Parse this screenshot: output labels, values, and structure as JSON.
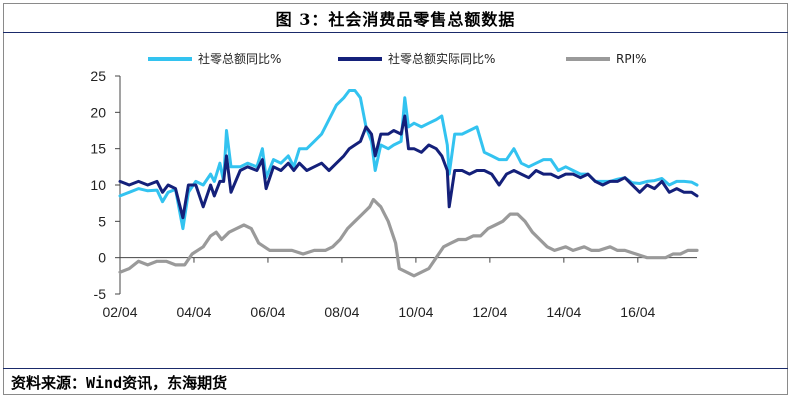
{
  "title": "图 3：社会消费品零售总额数据",
  "source": "资料来源：Wind资讯，东海期货",
  "colors": {
    "total_nominal": "#33c3f0",
    "total_real": "#14207a",
    "rpi": "#9a9a9a"
  },
  "chart_data": {
    "type": "line",
    "title": "图 3：社会消费品零售总额数据",
    "xlabel": "",
    "ylabel": "",
    "x_ticks": [
      "02/04",
      "04/04",
      "06/04",
      "08/04",
      "10/04",
      "12/04",
      "14/04",
      "16/04"
    ],
    "x_range": [
      2002.25,
      2017.85
    ],
    "y_ticks": [
      "25",
      "20",
      "15",
      "10",
      "5",
      "0",
      "-5"
    ],
    "ylim": [
      -5,
      25
    ],
    "grid": false,
    "legend_position": "top",
    "series": [
      {
        "name": "社零总额同比%",
        "color": "#33c3f0",
        "points": [
          [
            2002.25,
            8.5
          ],
          [
            2002.5,
            9.0
          ],
          [
            2002.75,
            9.5
          ],
          [
            2003.0,
            9.2
          ],
          [
            2003.25,
            9.3
          ],
          [
            2003.4,
            7.7
          ],
          [
            2003.55,
            9.0
          ],
          [
            2003.75,
            9.4
          ],
          [
            2003.95,
            4.0
          ],
          [
            2004.1,
            9.0
          ],
          [
            2004.3,
            10.5
          ],
          [
            2004.5,
            10.0
          ],
          [
            2004.7,
            11.5
          ],
          [
            2004.8,
            10.5
          ],
          [
            2004.95,
            13.0
          ],
          [
            2005.05,
            10.5
          ],
          [
            2005.13,
            17.5
          ],
          [
            2005.25,
            12.5
          ],
          [
            2005.5,
            12.5
          ],
          [
            2005.7,
            13.0
          ],
          [
            2005.95,
            12.5
          ],
          [
            2006.1,
            15.0
          ],
          [
            2006.2,
            11.0
          ],
          [
            2006.4,
            13.5
          ],
          [
            2006.6,
            13.0
          ],
          [
            2006.8,
            14.0
          ],
          [
            2006.95,
            12.5
          ],
          [
            2007.1,
            15.0
          ],
          [
            2007.3,
            15.0
          ],
          [
            2007.5,
            16.0
          ],
          [
            2007.7,
            17.0
          ],
          [
            2007.9,
            19.0
          ],
          [
            2008.1,
            21.0
          ],
          [
            2008.3,
            22.0
          ],
          [
            2008.45,
            23.0
          ],
          [
            2008.6,
            23.0
          ],
          [
            2008.75,
            22.0
          ],
          [
            2008.9,
            18.0
          ],
          [
            2009.05,
            16.0
          ],
          [
            2009.15,
            12.0
          ],
          [
            2009.3,
            15.5
          ],
          [
            2009.5,
            15.0
          ],
          [
            2009.65,
            15.5
          ],
          [
            2009.85,
            16.0
          ],
          [
            2009.95,
            22.0
          ],
          [
            2010.05,
            18.0
          ],
          [
            2010.2,
            18.5
          ],
          [
            2010.4,
            18.0
          ],
          [
            2010.6,
            18.5
          ],
          [
            2010.8,
            19.0
          ],
          [
            2010.95,
            19.5
          ],
          [
            2011.1,
            15.5
          ],
          [
            2011.15,
            11.5
          ],
          [
            2011.3,
            17.0
          ],
          [
            2011.5,
            17.0
          ],
          [
            2011.7,
            17.5
          ],
          [
            2011.9,
            18.0
          ],
          [
            2012.1,
            14.5
          ],
          [
            2012.3,
            14.0
          ],
          [
            2012.5,
            13.5
          ],
          [
            2012.7,
            13.5
          ],
          [
            2012.9,
            15.0
          ],
          [
            2013.1,
            13.0
          ],
          [
            2013.3,
            12.5
          ],
          [
            2013.5,
            13.0
          ],
          [
            2013.7,
            13.5
          ],
          [
            2013.9,
            13.5
          ],
          [
            2014.1,
            12.0
          ],
          [
            2014.3,
            12.5
          ],
          [
            2014.5,
            12.0
          ],
          [
            2014.7,
            11.5
          ],
          [
            2014.9,
            11.5
          ],
          [
            2015.1,
            10.5
          ],
          [
            2015.3,
            10.5
          ],
          [
            2015.5,
            10.5
          ],
          [
            2015.7,
            10.8
          ],
          [
            2015.9,
            11.0
          ],
          [
            2016.1,
            10.3
          ],
          [
            2016.3,
            10.2
          ],
          [
            2016.5,
            10.5
          ],
          [
            2016.7,
            10.6
          ],
          [
            2016.9,
            10.9
          ],
          [
            2017.1,
            10.0
          ],
          [
            2017.3,
            10.5
          ],
          [
            2017.5,
            10.5
          ],
          [
            2017.7,
            10.4
          ],
          [
            2017.85,
            10.0
          ]
        ]
      },
      {
        "name": "社零总额实际同比%",
        "color": "#14207a",
        "points": [
          [
            2002.25,
            10.5
          ],
          [
            2002.5,
            10.0
          ],
          [
            2002.75,
            10.5
          ],
          [
            2003.0,
            10.0
          ],
          [
            2003.25,
            10.5
          ],
          [
            2003.4,
            9.0
          ],
          [
            2003.55,
            10.0
          ],
          [
            2003.75,
            9.5
          ],
          [
            2003.95,
            5.5
          ],
          [
            2004.1,
            10.0
          ],
          [
            2004.3,
            10.0
          ],
          [
            2004.5,
            7.0
          ],
          [
            2004.7,
            10.0
          ],
          [
            2004.8,
            8.5
          ],
          [
            2004.95,
            10.5
          ],
          [
            2005.05,
            10.5
          ],
          [
            2005.13,
            14.0
          ],
          [
            2005.25,
            9.0
          ],
          [
            2005.5,
            12.0
          ],
          [
            2005.7,
            12.5
          ],
          [
            2005.95,
            12.0
          ],
          [
            2006.1,
            13.5
          ],
          [
            2006.2,
            9.5
          ],
          [
            2006.4,
            12.5
          ],
          [
            2006.6,
            12.0
          ],
          [
            2006.8,
            13.0
          ],
          [
            2006.95,
            12.0
          ],
          [
            2007.1,
            13.0
          ],
          [
            2007.3,
            12.0
          ],
          [
            2007.5,
            12.5
          ],
          [
            2007.7,
            13.0
          ],
          [
            2007.9,
            12.0
          ],
          [
            2008.1,
            13.0
          ],
          [
            2008.3,
            14.0
          ],
          [
            2008.45,
            15.0
          ],
          [
            2008.6,
            15.5
          ],
          [
            2008.75,
            16.0
          ],
          [
            2008.9,
            18.0
          ],
          [
            2009.05,
            17.0
          ],
          [
            2009.15,
            14.0
          ],
          [
            2009.3,
            17.0
          ],
          [
            2009.5,
            17.0
          ],
          [
            2009.65,
            17.5
          ],
          [
            2009.85,
            17.0
          ],
          [
            2009.95,
            19.5
          ],
          [
            2010.05,
            15.0
          ],
          [
            2010.2,
            15.0
          ],
          [
            2010.4,
            14.5
          ],
          [
            2010.6,
            15.5
          ],
          [
            2010.8,
            15.0
          ],
          [
            2010.95,
            14.0
          ],
          [
            2011.1,
            12.0
          ],
          [
            2011.15,
            7.0
          ],
          [
            2011.3,
            12.0
          ],
          [
            2011.5,
            12.0
          ],
          [
            2011.7,
            11.5
          ],
          [
            2011.9,
            12.0
          ],
          [
            2012.1,
            12.0
          ],
          [
            2012.3,
            11.5
          ],
          [
            2012.5,
            10.0
          ],
          [
            2012.7,
            11.5
          ],
          [
            2012.9,
            12.0
          ],
          [
            2013.1,
            11.5
          ],
          [
            2013.3,
            11.0
          ],
          [
            2013.5,
            12.0
          ],
          [
            2013.7,
            11.5
          ],
          [
            2013.9,
            11.5
          ],
          [
            2014.1,
            11.0
          ],
          [
            2014.3,
            11.5
          ],
          [
            2014.5,
            11.5
          ],
          [
            2014.7,
            11.0
          ],
          [
            2014.9,
            11.5
          ],
          [
            2015.1,
            10.5
          ],
          [
            2015.3,
            10.0
          ],
          [
            2015.5,
            10.5
          ],
          [
            2015.7,
            10.5
          ],
          [
            2015.9,
            11.0
          ],
          [
            2016.1,
            10.0
          ],
          [
            2016.3,
            9.0
          ],
          [
            2016.5,
            10.0
          ],
          [
            2016.7,
            9.5
          ],
          [
            2016.9,
            10.5
          ],
          [
            2017.1,
            9.0
          ],
          [
            2017.3,
            9.5
          ],
          [
            2017.5,
            9.0
          ],
          [
            2017.7,
            9.0
          ],
          [
            2017.85,
            8.5
          ]
        ]
      },
      {
        "name": "RPI%",
        "color": "#9a9a9a",
        "points": [
          [
            2002.25,
            -2.0
          ],
          [
            2002.5,
            -1.5
          ],
          [
            2002.75,
            -0.5
          ],
          [
            2003.0,
            -1.0
          ],
          [
            2003.25,
            -0.5
          ],
          [
            2003.5,
            -0.5
          ],
          [
            2003.75,
            -1.0
          ],
          [
            2004.0,
            -1.0
          ],
          [
            2004.2,
            0.5
          ],
          [
            2004.5,
            1.5
          ],
          [
            2004.7,
            3.0
          ],
          [
            2004.85,
            3.5
          ],
          [
            2005.0,
            2.5
          ],
          [
            2005.2,
            3.5
          ],
          [
            2005.4,
            4.0
          ],
          [
            2005.6,
            4.5
          ],
          [
            2005.8,
            4.0
          ],
          [
            2006.0,
            2.0
          ],
          [
            2006.3,
            1.0
          ],
          [
            2006.5,
            1.0
          ],
          [
            2006.7,
            1.0
          ],
          [
            2006.9,
            1.0
          ],
          [
            2007.2,
            0.5
          ],
          [
            2007.5,
            1.0
          ],
          [
            2007.8,
            1.0
          ],
          [
            2008.0,
            1.5
          ],
          [
            2008.2,
            2.5
          ],
          [
            2008.4,
            4.0
          ],
          [
            2008.6,
            5.0
          ],
          [
            2008.8,
            6.0
          ],
          [
            2009.0,
            7.0
          ],
          [
            2009.1,
            8.0
          ],
          [
            2009.2,
            7.5
          ],
          [
            2009.3,
            7.0
          ],
          [
            2009.5,
            5.0
          ],
          [
            2009.7,
            2.0
          ],
          [
            2009.8,
            -1.5
          ],
          [
            2010.0,
            -2.0
          ],
          [
            2010.2,
            -2.5
          ],
          [
            2010.4,
            -2.0
          ],
          [
            2010.6,
            -1.5
          ],
          [
            2010.8,
            0.0
          ],
          [
            2011.0,
            1.5
          ],
          [
            2011.2,
            2.0
          ],
          [
            2011.4,
            2.5
          ],
          [
            2011.6,
            2.5
          ],
          [
            2011.8,
            3.0
          ],
          [
            2012.0,
            3.0
          ],
          [
            2012.2,
            4.0
          ],
          [
            2012.4,
            4.5
          ],
          [
            2012.6,
            5.0
          ],
          [
            2012.8,
            6.0
          ],
          [
            2013.0,
            6.0
          ],
          [
            2013.2,
            5.0
          ],
          [
            2013.4,
            3.5
          ],
          [
            2013.6,
            2.5
          ],
          [
            2013.8,
            1.5
          ],
          [
            2014.0,
            1.0
          ],
          [
            2014.3,
            1.5
          ],
          [
            2014.5,
            1.0
          ],
          [
            2014.8,
            1.5
          ],
          [
            2015.0,
            1.0
          ],
          [
            2015.2,
            1.0
          ],
          [
            2015.5,
            1.5
          ],
          [
            2015.7,
            1.0
          ],
          [
            2015.9,
            1.0
          ],
          [
            2016.2,
            0.5
          ],
          [
            2016.5,
            0.0
          ],
          [
            2016.8,
            0.0
          ],
          [
            2017.0,
            0.0
          ],
          [
            2017.2,
            0.5
          ],
          [
            2017.4,
            0.5
          ],
          [
            2017.6,
            1.0
          ],
          [
            2017.75,
            1.0
          ],
          [
            2017.85,
            1.0
          ]
        ]
      }
    ]
  }
}
